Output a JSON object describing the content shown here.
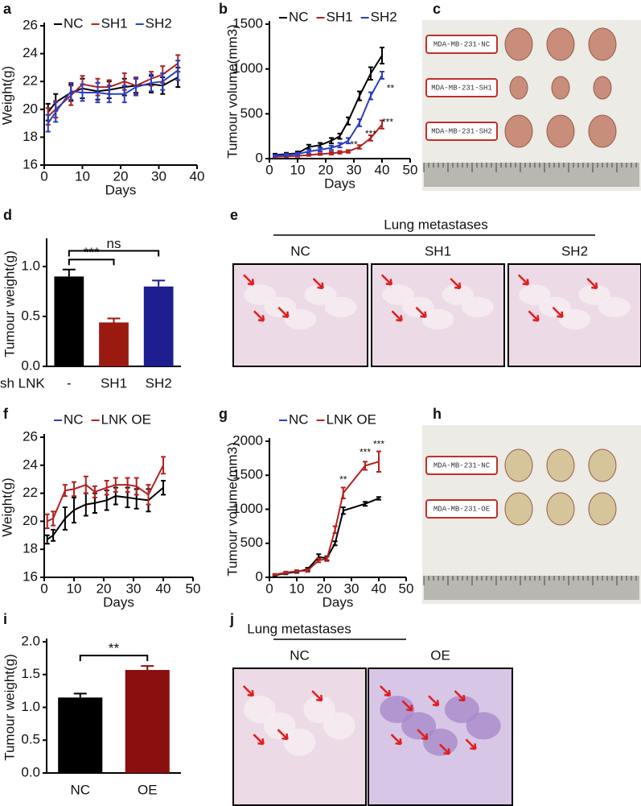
{
  "chart_data": [
    {
      "panel": "a",
      "type": "line",
      "xlabel": "Days",
      "ylabel": "Weight(g)",
      "x": [
        1,
        3,
        7,
        10,
        14,
        17,
        21,
        24,
        28,
        31,
        35
      ],
      "xlim": [
        0,
        40
      ],
      "xticks": [
        0,
        10,
        20,
        30,
        40
      ],
      "ylim": [
        16,
        26
      ],
      "yticks": [
        16,
        18,
        20,
        22,
        24,
        26
      ],
      "series": [
        {
          "name": "NC",
          "color": "#000000",
          "values": [
            19.8,
            20.5,
            21.2,
            21.5,
            21.3,
            21.4,
            21.6,
            21.7,
            21.8,
            21.7,
            22.3
          ],
          "errors": [
            0.6,
            0.6,
            0.6,
            0.7,
            0.6,
            0.6,
            0.6,
            0.5,
            0.6,
            0.6,
            0.7
          ]
        },
        {
          "name": "SH1",
          "color": "#b22222",
          "values": [
            19.5,
            20.0,
            21.0,
            21.8,
            21.6,
            21.6,
            22.0,
            21.7,
            22.2,
            22.5,
            23.3
          ],
          "errors": [
            0.6,
            0.6,
            0.7,
            0.6,
            0.6,
            0.5,
            0.6,
            0.6,
            0.5,
            0.6,
            0.6
          ]
        },
        {
          "name": "SH2",
          "color": "#2a3fbf",
          "values": [
            19.0,
            19.8,
            21.3,
            21.2,
            21.2,
            21.1,
            21.1,
            21.6,
            21.9,
            22.0,
            22.8
          ],
          "errors": [
            0.6,
            0.7,
            0.6,
            0.6,
            0.7,
            0.6,
            0.6,
            0.6,
            0.6,
            0.6,
            0.7
          ]
        }
      ]
    },
    {
      "panel": "b",
      "type": "line",
      "xlabel": "Days",
      "ylabel": "Tumour volume(mm3)",
      "x": [
        2,
        6,
        10,
        14,
        18,
        22,
        25,
        28,
        32,
        36,
        40
      ],
      "xlim": [
        0,
        50
      ],
      "xticks": [
        0,
        10,
        20,
        30,
        40,
        50
      ],
      "ylim": [
        0,
        1500
      ],
      "yticks": [
        0,
        500,
        1000,
        1500
      ],
      "series": [
        {
          "name": "NC",
          "color": "#000000",
          "values": [
            40,
            50,
            60,
            130,
            150,
            200,
            250,
            420,
            700,
            950,
            1150
          ],
          "errors": [
            15,
            15,
            20,
            25,
            25,
            30,
            30,
            40,
            50,
            70,
            90
          ]
        },
        {
          "name": "SH1",
          "color": "#b22222",
          "values": [
            20,
            25,
            30,
            40,
            50,
            60,
            70,
            80,
            130,
            230,
            380
          ],
          "errors": [
            10,
            10,
            10,
            10,
            10,
            15,
            15,
            15,
            20,
            30,
            45
          ]
        },
        {
          "name": "SH2",
          "color": "#2a3fbf",
          "values": [
            30,
            40,
            50,
            80,
            100,
            120,
            150,
            200,
            400,
            700,
            930
          ],
          "errors": [
            10,
            15,
            15,
            20,
            20,
            25,
            25,
            30,
            40,
            40,
            40
          ]
        }
      ],
      "annotations": [
        {
          "text": "**",
          "x": 43,
          "y": 780
        },
        {
          "text": "***",
          "x": 42,
          "y": 400
        },
        {
          "text": "***",
          "x": 36,
          "y": 270
        },
        {
          "text": "**",
          "x": 30,
          "y": 150
        }
      ]
    },
    {
      "panel": "d",
      "type": "bar",
      "ylabel": "Tumour weight(g)",
      "xlabel": "sh LNK",
      "categories": [
        "-",
        "SH1",
        "SH2"
      ],
      "values": [
        0.9,
        0.44,
        0.8
      ],
      "errors": [
        0.07,
        0.04,
        0.06
      ],
      "colors": [
        "#000000",
        "#9b1a10",
        "#1d1d8f"
      ],
      "ylim": [
        0,
        1.25
      ],
      "yticks": [
        {
          "value": 0,
          "label": "0.0"
        },
        0.5,
        {
          "value": 1,
          "label": "1.0"
        }
      ],
      "brackets": [
        {
          "from": "-",
          "to": "SH1",
          "label": "***"
        },
        {
          "from": "-",
          "to": "SH2",
          "label": "ns"
        }
      ]
    },
    {
      "panel": "f",
      "type": "line",
      "xlabel": "Days",
      "ylabel": "Weight(g)",
      "x": [
        1,
        3,
        7,
        10,
        14,
        17,
        21,
        24,
        28,
        31,
        35,
        40
      ],
      "xlim": [
        0,
        50
      ],
      "xticks": [
        0,
        10,
        20,
        30,
        40,
        50
      ],
      "ylim": [
        16,
        26
      ],
      "yticks": [
        16,
        18,
        20,
        22,
        24,
        26
      ],
      "series": [
        {
          "name": "NC",
          "color": "#000000",
          "legend_color": "#2a3fbf",
          "values": [
            18.7,
            19.0,
            20.2,
            20.8,
            21.2,
            21.3,
            21.5,
            21.8,
            21.7,
            21.6,
            21.5,
            22.4
          ],
          "errors": [
            0.3,
            0.4,
            0.8,
            0.9,
            0.8,
            0.7,
            0.7,
            0.6,
            0.7,
            0.7,
            0.8,
            0.5
          ]
        },
        {
          "name": "LNK OE",
          "color": "#b22222",
          "values": [
            20.0,
            20.2,
            22.2,
            22.3,
            22.6,
            22.1,
            22.4,
            22.6,
            22.6,
            22.5,
            21.9,
            24.0
          ],
          "errors": [
            0.5,
            0.5,
            0.4,
            0.5,
            0.6,
            0.4,
            0.5,
            0.5,
            0.5,
            0.6,
            0.7,
            0.6
          ]
        }
      ]
    },
    {
      "panel": "g",
      "type": "line",
      "xlabel": "Days",
      "ylabel": "Tumour volume(mm3)",
      "x": [
        2,
        6,
        10,
        14,
        18,
        21,
        24,
        27,
        35,
        40
      ],
      "xlim": [
        0,
        50
      ],
      "xticks": [
        0,
        10,
        20,
        30,
        40,
        50
      ],
      "ylim": [
        0,
        2000
      ],
      "yticks": [
        0,
        500,
        1000,
        1500,
        2000
      ],
      "series": [
        {
          "name": "NC",
          "color": "#000000",
          "legend_color": "#2a3fbf",
          "values": [
            30,
            60,
            80,
            120,
            300,
            280,
            500,
            980,
            1080,
            1160
          ],
          "errors": [
            10,
            15,
            15,
            20,
            40,
            30,
            30,
            50,
            30,
            20
          ]
        },
        {
          "name": "LNK OE",
          "color": "#b22222",
          "values": [
            40,
            70,
            90,
            100,
            250,
            270,
            700,
            1240,
            1640,
            1700
          ],
          "errors": [
            10,
            15,
            15,
            20,
            30,
            30,
            50,
            80,
            60,
            150
          ]
        }
      ],
      "annotations": [
        {
          "text": "**",
          "x": 27,
          "y": 1430
        },
        {
          "text": "***",
          "x": 35,
          "y": 1830
        },
        {
          "text": "***",
          "x": 40,
          "y": 1950
        }
      ]
    },
    {
      "panel": "i",
      "type": "bar",
      "ylabel": "Tumour weight(g)",
      "categories": [
        "NC",
        "OE"
      ],
      "values": [
        1.15,
        1.57
      ],
      "errors": [
        0.06,
        0.06
      ],
      "colors": [
        "#000000",
        "#8b0f0f"
      ],
      "ylim": [
        0,
        2
      ],
      "yticks": [
        {
          "value": 0,
          "label": "0.0"
        },
        0.5,
        {
          "value": 1,
          "label": "1.0"
        },
        1.5,
        {
          "value": 2,
          "label": "2.0"
        }
      ],
      "brackets": [
        {
          "from": "NC",
          "to": "OE",
          "label": "**"
        }
      ]
    }
  ],
  "images": [
    {
      "panel": "c",
      "labels": [
        "MDA-MB-231-NC",
        "MDA-MB-231-SH1",
        "MDA-MB-231-SH2"
      ]
    },
    {
      "panel": "e",
      "title": "Lung metastases",
      "labels": [
        "NC",
        "SH1",
        "SH2"
      ]
    },
    {
      "panel": "h",
      "labels": [
        "MDA-MB-231-NC",
        "MDA-MB-231-OE"
      ]
    },
    {
      "panel": "j",
      "title": "Lung metastases",
      "labels": [
        "NC",
        "OE"
      ]
    }
  ]
}
